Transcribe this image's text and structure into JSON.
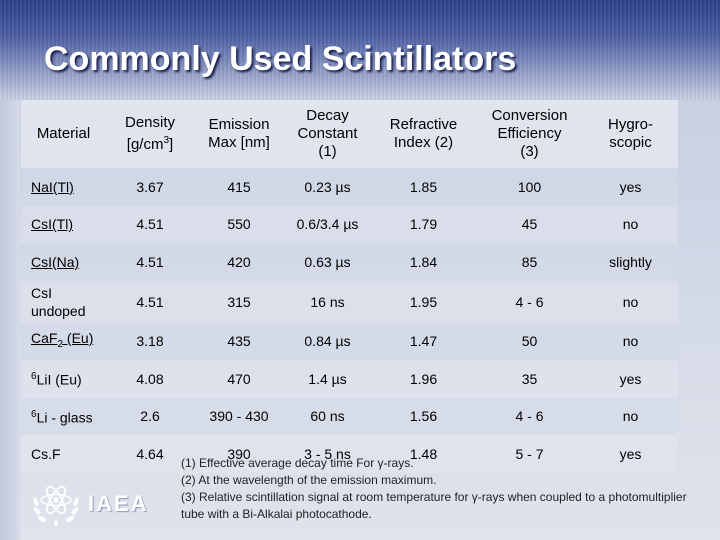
{
  "title": "Commonly Used Scintillators",
  "table": {
    "headers": [
      [
        "Material"
      ],
      [
        "Density",
        "[g/cm3]"
      ],
      [
        "Emission",
        "Max  [nm]"
      ],
      [
        "Decay",
        "Constant",
        "(1)"
      ],
      [
        "Refractive",
        "Index (2)"
      ],
      [
        "Conversion",
        "Efficiency",
        "(3)"
      ],
      [
        "Hygro-",
        "scopic"
      ]
    ],
    "rows": [
      {
        "material": "NaI(Tl)",
        "density": "3.67",
        "emission": "415",
        "decay": "0.23 µs",
        "refractive": "1.85",
        "conversion": "100",
        "hygroscopic": "yes"
      },
      {
        "material": "CsI(Tl)",
        "density": "4.51",
        "emission": "550",
        "decay": "0.6/3.4 µs",
        "refractive": "1.79",
        "conversion": "45",
        "hygroscopic": "no"
      },
      {
        "material": "CsI(Na)",
        "density": "4.51",
        "emission": "420",
        "decay": "0.63 µs",
        "refractive": "1.84",
        "conversion": "85",
        "hygroscopic": "slightly"
      },
      {
        "material": "CsI undoped",
        "density": "4.51",
        "emission": "315",
        "decay": "16 ns",
        "refractive": "1.95",
        "conversion": "4 - 6",
        "hygroscopic": "no"
      },
      {
        "material": "CaF2 (Eu)",
        "density": "3.18",
        "emission": "435",
        "decay": "0.84 µs",
        "refractive": "1.47",
        "conversion": "50",
        "hygroscopic": "no"
      },
      {
        "material": "6LiI (Eu)",
        "density": "4.08",
        "emission": "470",
        "decay": "1.4 µs",
        "refractive": "1.96",
        "conversion": "35",
        "hygroscopic": "yes"
      },
      {
        "material": "6Li - glass",
        "density": "2.6",
        "emission": "390 - 430",
        "decay": "60 ns",
        "refractive": "1.56",
        "conversion": "4 - 6",
        "hygroscopic": "no"
      },
      {
        "material": "Cs.F",
        "density": "4.64",
        "emission": "390",
        "decay": "3 - 5 ns",
        "refractive": "1.48",
        "conversion": "5 - 7",
        "hygroscopic": "yes"
      }
    ]
  },
  "notes": [
    "(1) Effective average decay time For γ-rays.",
    "(2) At the wavelength of the emission maximum.",
    "(3) Relative scintillation signal at room temperature for γ-rays when coupled to a photomultiplier tube with a Bi-Alkalai photocathode."
  ],
  "logo": {
    "text": "IAEA",
    "icon": "atom-laurel-icon"
  },
  "colors": {
    "title": "#ffffff",
    "band_dark": "#2e3f86",
    "background": "#d7dce8"
  }
}
